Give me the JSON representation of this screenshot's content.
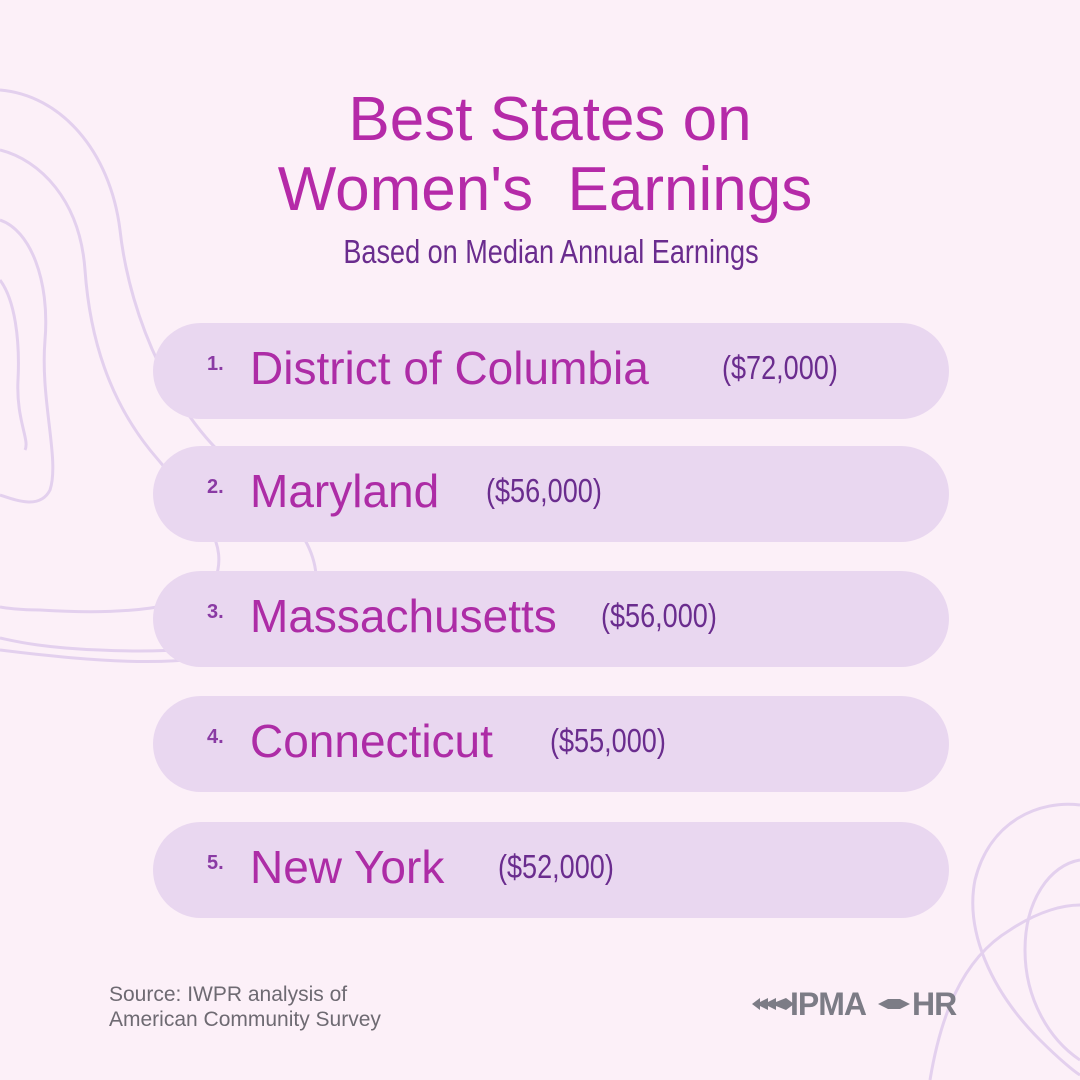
{
  "title_line1": "Best States on",
  "title_line2": "Women's  Earnings",
  "subtitle": "Based on Median Annual Earnings",
  "items": [
    {
      "rank": "1.",
      "name": "District of Columbia",
      "amount": "($72,000)"
    },
    {
      "rank": "2.",
      "name": "Maryland",
      "amount": "($56,000)"
    },
    {
      "rank": "3.",
      "name": "Massachusetts",
      "amount": "($56,000)"
    },
    {
      "rank": "4.",
      "name": "Connecticut",
      "amount": "($55,000)"
    },
    {
      "rank": "5.",
      "name": "New York",
      "amount": "($52,000)"
    }
  ],
  "source_line1": "Source: IWPR analysis of",
  "source_line2": "American Community Survey",
  "logo": {
    "left": "IPMA",
    "right": "HR"
  },
  "colors": {
    "background": "#fcf0f8",
    "title": "#b52aa8",
    "subtitle": "#6a2c8e",
    "pill": "#e9d7f0",
    "logo": "#7c7c86"
  }
}
